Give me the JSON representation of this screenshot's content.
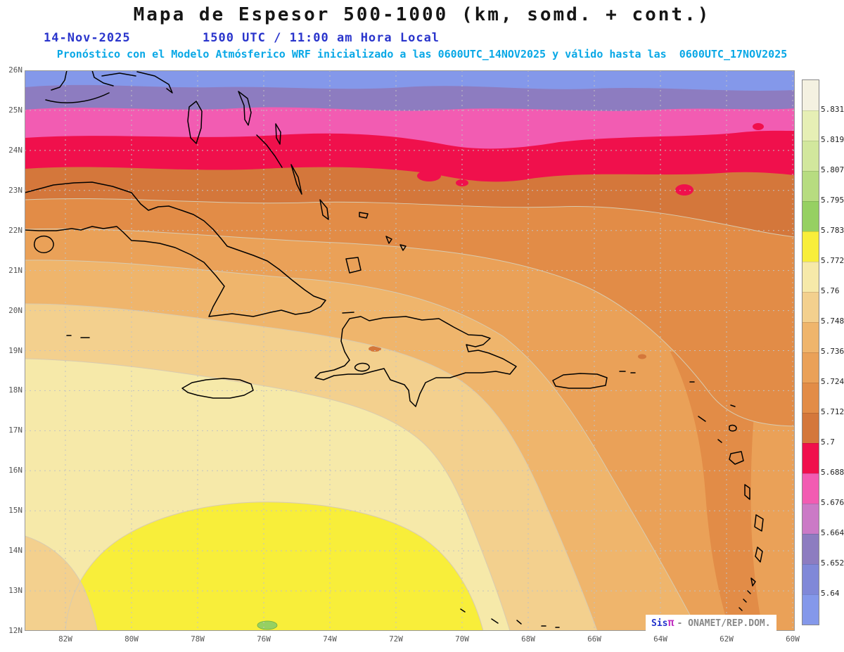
{
  "header": {
    "title": "Mapa de Espesor 500-1000 (km, somd. + cont.)",
    "date": "14-Nov-2025",
    "time": "1500 UTC / 11:00 am Hora Local",
    "forecast": "Pronóstico con el Modelo Atmósferico WRF inicializado a las 0600UTC_14NOV2025 y válido hasta las  0600UTC_17NOV2025"
  },
  "map": {
    "lat_labels": [
      "26N",
      "25N",
      "24N",
      "23N",
      "22N",
      "21N",
      "20N",
      "19N",
      "18N",
      "17N",
      "16N",
      "15N",
      "14N",
      "13N",
      "12N"
    ],
    "lon_labels": [
      "82W",
      "80W",
      "78W",
      "76W",
      "74W",
      "72W",
      "70W",
      "68W",
      "66W",
      "64W",
      "62W",
      "60W"
    ]
  },
  "colorbar": {
    "labels": [
      "5.831",
      "5.819",
      "5.807",
      "5.795",
      "5.783",
      "5.772",
      "5.76",
      "5.748",
      "5.736",
      "5.724",
      "5.712",
      "5.7",
      "5.688",
      "5.676",
      "5.664",
      "5.652",
      "5.64"
    ],
    "colors": [
      "#f4f1e1",
      "#e6efb5",
      "#d2e79d",
      "#b7dc80",
      "#96d062",
      "#f8ee3a",
      "#f6e9a9",
      "#f3d08e",
      "#efb56c",
      "#eaa158",
      "#e28c47",
      "#d4773b",
      "#f0104c",
      "#f25cb2",
      "#cb7ac6",
      "#8d7cc0",
      "#8088d8",
      "#8498ea"
    ]
  },
  "watermark": {
    "brand": "Sis",
    "pi": "π",
    "text": "- ONAMET/REP.DOM."
  }
}
